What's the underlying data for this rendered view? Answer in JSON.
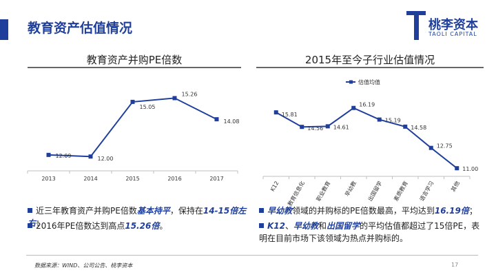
{
  "header": {
    "title": "教育资产估值情况"
  },
  "logo": {
    "name": "桃李资本",
    "sub": "TAOLI CAPITAL"
  },
  "chart_data": [
    {
      "type": "line",
      "title": "教育资产并购PE倍数",
      "categories": [
        "2013",
        "2014",
        "2015",
        "2016",
        "2017"
      ],
      "series": [
        {
          "values": [
            12.09,
            12.0,
            15.05,
            15.26,
            14.08
          ]
        }
      ],
      "value_labels": [
        "12.09",
        "12.00",
        "15.05",
        "15.26",
        "14.08"
      ],
      "ylim": [
        11.2,
        16.2
      ],
      "grid": false,
      "color": "#1f3f9b"
    },
    {
      "type": "line",
      "title": "2015年至今子行业估值情况",
      "categories": [
        "K12",
        "教育信息化",
        "职业教育",
        "早幼教",
        "出国留学",
        "素质教育",
        "语言学习",
        "其他"
      ],
      "series": [
        {
          "name": "估值均值",
          "values": [
            15.81,
            14.56,
            14.61,
            16.19,
            15.19,
            14.58,
            12.75,
            11.0
          ]
        }
      ],
      "value_labels": [
        "15.81",
        "14.56",
        "14.61",
        "16.19",
        "15.19",
        "14.58",
        "12.75",
        "11.00"
      ],
      "ylim": [
        10.3,
        17.3
      ],
      "legend": "top",
      "grid": false,
      "color": "#1f3f9b"
    }
  ],
  "left_bullets": [
    {
      "parts": [
        "近三年教育资产并购PE倍数",
        "基本持平",
        "，保持在",
        "14-15倍左右",
        "；"
      ]
    },
    {
      "parts": [
        "2016年PE倍数达到高点",
        "15.26倍",
        "。"
      ]
    }
  ],
  "right_bullets": [
    {
      "parts": [
        "早幼教",
        "领域的并购标的PE倍数最高，平均达到",
        "16.19倍",
        "；"
      ]
    },
    {
      "parts": [
        "K12",
        "、",
        "早幼教",
        "和",
        "出国留学",
        "的平均估值都超过了15倍PE，表明在目前市场下该领域为热点并购标的。"
      ]
    }
  ],
  "footer": {
    "source": "数据来源：WIND、公司公告、桃李资本",
    "page": "17"
  }
}
